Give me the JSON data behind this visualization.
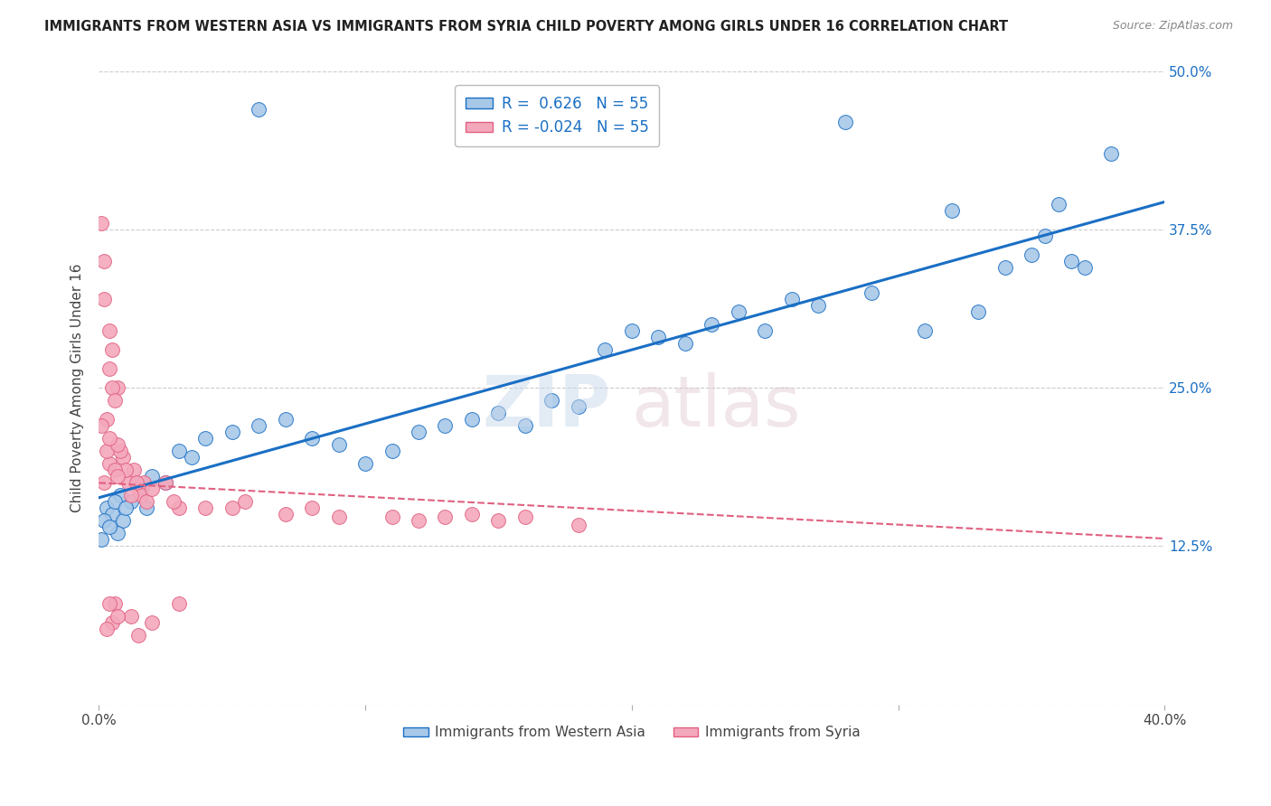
{
  "title": "IMMIGRANTS FROM WESTERN ASIA VS IMMIGRANTS FROM SYRIA CHILD POVERTY AMONG GIRLS UNDER 16 CORRELATION CHART",
  "source": "Source: ZipAtlas.com",
  "ylabel": "Child Poverty Among Girls Under 16",
  "xmin": 0.0,
  "xmax": 0.4,
  "ymin": 0.0,
  "ymax": 0.5,
  "xticks": [
    0.0,
    0.1,
    0.2,
    0.3,
    0.4
  ],
  "xticklabels": [
    "0.0%",
    "",
    "",
    "",
    "40.0%"
  ],
  "yticks": [
    0.0,
    0.125,
    0.25,
    0.375,
    0.5
  ],
  "yticklabels": [
    "",
    "12.5%",
    "25.0%",
    "37.5%",
    "50.0%"
  ],
  "R_western": 0.626,
  "N_western": 55,
  "R_syria": -0.024,
  "N_syria": 55,
  "western_asia_color": "#a8c8e8",
  "syria_color": "#f4a8bc",
  "line_western_color": "#1a6fc4",
  "line_syria_color": "#e06080",
  "western_asia_x": [
    0.001,
    0.002,
    0.003,
    0.004,
    0.005,
    0.006,
    0.007,
    0.008,
    0.009,
    0.01,
    0.012,
    0.014,
    0.016,
    0.018,
    0.02,
    0.025,
    0.03,
    0.035,
    0.04,
    0.05,
    0.06,
    0.07,
    0.08,
    0.09,
    0.1,
    0.11,
    0.12,
    0.13,
    0.14,
    0.15,
    0.16,
    0.17,
    0.18,
    0.19,
    0.2,
    0.21,
    0.22,
    0.23,
    0.24,
    0.25,
    0.26,
    0.27,
    0.28,
    0.29,
    0.3,
    0.31,
    0.32,
    0.33,
    0.34,
    0.35,
    0.355,
    0.36,
    0.365,
    0.37,
    0.38
  ],
  "western_asia_y": [
    0.13,
    0.145,
    0.155,
    0.14,
    0.15,
    0.16,
    0.135,
    0.165,
    0.145,
    0.155,
    0.16,
    0.175,
    0.17,
    0.155,
    0.18,
    0.175,
    0.2,
    0.195,
    0.21,
    0.215,
    0.22,
    0.225,
    0.21,
    0.205,
    0.19,
    0.2,
    0.215,
    0.22,
    0.225,
    0.23,
    0.22,
    0.24,
    0.235,
    0.28,
    0.295,
    0.29,
    0.285,
    0.3,
    0.31,
    0.295,
    0.32,
    0.315,
    0.46,
    0.325,
    0.33,
    0.295,
    0.39,
    0.31,
    0.345,
    0.355,
    0.37,
    0.395,
    0.35,
    0.345,
    0.435
  ],
  "western_asia_y_outlier": [
    0.47
  ],
  "western_asia_x_outlier": [
    0.06
  ],
  "syria_x": [
    0.001,
    0.001,
    0.001,
    0.002,
    0.002,
    0.002,
    0.003,
    0.003,
    0.003,
    0.004,
    0.004,
    0.005,
    0.005,
    0.006,
    0.006,
    0.007,
    0.007,
    0.008,
    0.008,
    0.009,
    0.01,
    0.01,
    0.011,
    0.012,
    0.013,
    0.014,
    0.015,
    0.016,
    0.017,
    0.018,
    0.02,
    0.022,
    0.025,
    0.028,
    0.03,
    0.033,
    0.035,
    0.04,
    0.045,
    0.05,
    0.055,
    0.06,
    0.065,
    0.07,
    0.08,
    0.09,
    0.1,
    0.11,
    0.12,
    0.13,
    0.14,
    0.15,
    0.16,
    0.17,
    0.18
  ],
  "syria_y": [
    0.17,
    0.2,
    0.22,
    0.175,
    0.195,
    0.215,
    0.18,
    0.2,
    0.225,
    0.19,
    0.21,
    0.175,
    0.21,
    0.185,
    0.215,
    0.18,
    0.205,
    0.17,
    0.2,
    0.195,
    0.16,
    0.185,
    0.175,
    0.165,
    0.185,
    0.175,
    0.17,
    0.165,
    0.175,
    0.16,
    0.17,
    0.165,
    0.175,
    0.16,
    0.155,
    0.17,
    0.16,
    0.155,
    0.165,
    0.155,
    0.16,
    0.15,
    0.155,
    0.15,
    0.155,
    0.148,
    0.152,
    0.148,
    0.145,
    0.148,
    0.15,
    0.145,
    0.148,
    0.145,
    0.142
  ],
  "syria_y_top": [
    0.38,
    0.35,
    0.29,
    0.27,
    0.32,
    0.265,
    0.295,
    0.28,
    0.25,
    0.24,
    0.26,
    0.25,
    0.255
  ],
  "syria_x_top": [
    0.001,
    0.002,
    0.003,
    0.003,
    0.002,
    0.004,
    0.004,
    0.005,
    0.005,
    0.006,
    0.006,
    0.007,
    0.007
  ],
  "syria_low_y": [
    0.05,
    0.075,
    0.06,
    0.08,
    0.065,
    0.08,
    0.07,
    0.075,
    0.06,
    0.07,
    0.055,
    0.065,
    0.06,
    0.08
  ],
  "syria_low_x": [
    0.001,
    0.002,
    0.003,
    0.004,
    0.005,
    0.006,
    0.007,
    0.008,
    0.01,
    0.012,
    0.015,
    0.02,
    0.025,
    0.03
  ]
}
